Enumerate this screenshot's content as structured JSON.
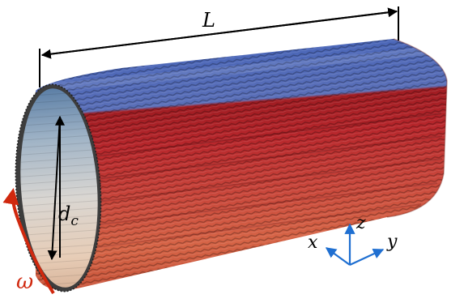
{
  "labels": {
    "length": "L",
    "diameter_symbol": "d",
    "diameter_subscript": "c",
    "rotation": "ω",
    "axis_x": "x",
    "axis_y": "y",
    "axis_z": "z"
  },
  "colors": {
    "blue_band": "#3f5fb0",
    "red_band": "#b3262a",
    "orange_band": "#d2553c",
    "interior_light": "#e8ddd2",
    "interior_dark": "#6f8fb0",
    "axes": "#1f6fd1",
    "omega": "#d0280e",
    "dimension": "#000000"
  }
}
